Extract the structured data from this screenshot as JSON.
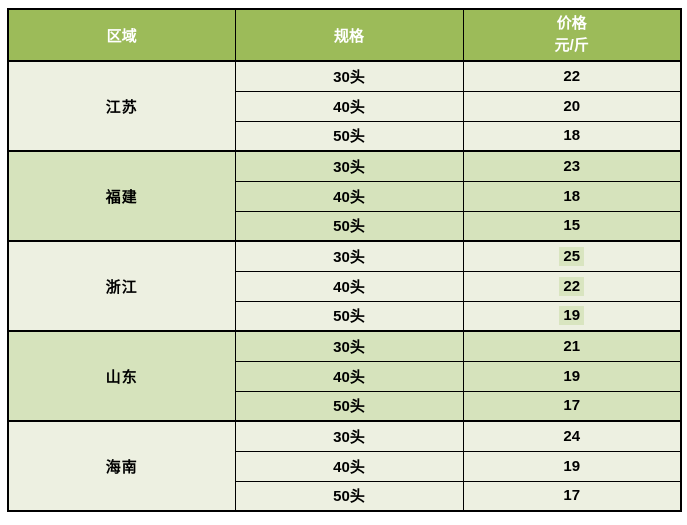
{
  "table": {
    "headers": {
      "region": "区域",
      "spec": "规格",
      "price_line1": "价格",
      "price_line2": "元/斤"
    },
    "sections": [
      {
        "region": "江苏",
        "band": "pale",
        "price_highlighted": false,
        "rows": [
          {
            "spec": "30头",
            "price": "22"
          },
          {
            "spec": "40头",
            "price": "20"
          },
          {
            "spec": "50头",
            "price": "18"
          }
        ]
      },
      {
        "region": "福建",
        "band": "green",
        "price_highlighted": false,
        "rows": [
          {
            "spec": "30头",
            "price": "23"
          },
          {
            "spec": "40头",
            "price": "18"
          },
          {
            "spec": "50头",
            "price": "15"
          }
        ]
      },
      {
        "region": "浙江",
        "band": "pale",
        "price_highlighted": true,
        "rows": [
          {
            "spec": "30头",
            "price": "25"
          },
          {
            "spec": "40头",
            "price": "22"
          },
          {
            "spec": "50头",
            "price": "19"
          }
        ]
      },
      {
        "region": "山东",
        "band": "green",
        "price_highlighted": false,
        "rows": [
          {
            "spec": "30头",
            "price": "21"
          },
          {
            "spec": "40头",
            "price": "19"
          },
          {
            "spec": "50头",
            "price": "17"
          }
        ]
      },
      {
        "region": "海南",
        "band": "pale",
        "price_highlighted": false,
        "rows": [
          {
            "spec": "30头",
            "price": "24"
          },
          {
            "spec": "40头",
            "price": "19"
          },
          {
            "spec": "50头",
            "price": "17"
          }
        ]
      }
    ],
    "colors": {
      "header_bg": "#9CBB59",
      "band_pale": "#EDF0E1",
      "band_green": "#D6E3BC",
      "price_highlight": "#D9E5C0",
      "border": "#000000",
      "header_text": "#FFFFFF",
      "body_text": "#000000"
    }
  }
}
